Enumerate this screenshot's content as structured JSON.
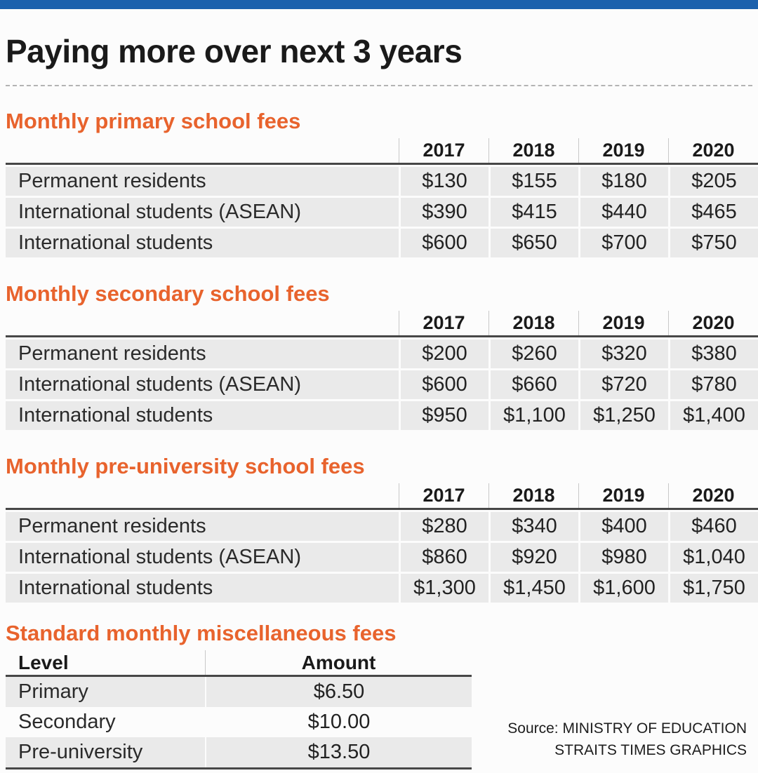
{
  "header": {
    "title": "Paying more over next 3 years"
  },
  "theme": {
    "accent_blue": "#1b61ad",
    "accent_orange": "#e8632d",
    "row_gray": "#eaeaea"
  },
  "chart_data": [
    {
      "type": "table",
      "title": "Monthly primary school fees",
      "years": [
        "2017",
        "2018",
        "2019",
        "2020"
      ],
      "rows": [
        {
          "label": "Permanent residents",
          "values": [
            "$130",
            "$155",
            "$180",
            "$205"
          ]
        },
        {
          "label": "International students (ASEAN)",
          "values": [
            "$390",
            "$415",
            "$440",
            "$465"
          ]
        },
        {
          "label": "International students",
          "values": [
            "$600",
            "$650",
            "$700",
            "$750"
          ]
        }
      ]
    },
    {
      "type": "table",
      "title": "Monthly secondary school fees",
      "years": [
        "2017",
        "2018",
        "2019",
        "2020"
      ],
      "rows": [
        {
          "label": "Permanent residents",
          "values": [
            "$200",
            "$260",
            "$320",
            "$380"
          ]
        },
        {
          "label": "International students (ASEAN)",
          "values": [
            "$600",
            "$660",
            "$720",
            "$780"
          ]
        },
        {
          "label": "International students",
          "values": [
            "$950",
            "$1,100",
            "$1,250",
            "$1,400"
          ]
        }
      ]
    },
    {
      "type": "table",
      "title": "Monthly pre-university school fees",
      "years": [
        "2017",
        "2018",
        "2019",
        "2020"
      ],
      "rows": [
        {
          "label": "Permanent residents",
          "values": [
            "$280",
            "$340",
            "$400",
            "$460"
          ]
        },
        {
          "label": "International students (ASEAN)",
          "values": [
            "$860",
            "$920",
            "$980",
            "$1,040"
          ]
        },
        {
          "label": "International students",
          "values": [
            "$1,300",
            "$1,450",
            "$1,600",
            "$1,750"
          ]
        }
      ]
    },
    {
      "type": "table",
      "title": "Standard monthly miscellaneous fees",
      "columns": [
        "Level",
        "Amount"
      ],
      "rows": [
        {
          "label": "Primary",
          "amount": "$6.50"
        },
        {
          "label": "Secondary",
          "amount": "$10.00"
        },
        {
          "label": "Pre-university",
          "amount": "$13.50"
        }
      ]
    }
  ],
  "source": {
    "line1": "Source: MINISTRY OF EDUCATION",
    "line2": "STRAITS TIMES GRAPHICS"
  }
}
